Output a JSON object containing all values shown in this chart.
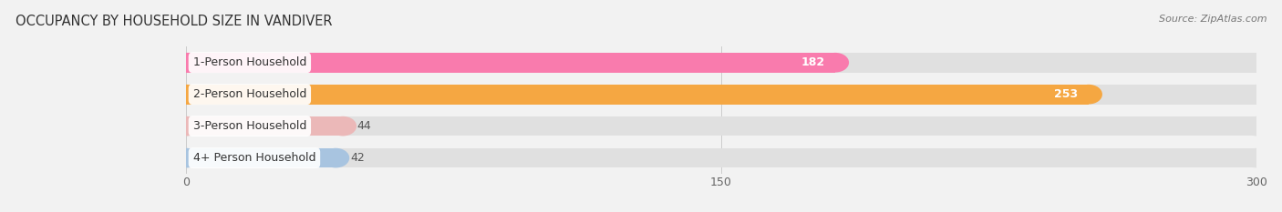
{
  "title": "OCCUPANCY BY HOUSEHOLD SIZE IN VANDIVER",
  "source": "Source: ZipAtlas.com",
  "categories": [
    "1-Person Household",
    "2-Person Household",
    "3-Person Household",
    "4+ Person Household"
  ],
  "values": [
    182,
    253,
    44,
    42
  ],
  "bar_colors": [
    "#f97bad",
    "#f5a742",
    "#ebb8b8",
    "#a8c4e0"
  ],
  "xlim": [
    0,
    300
  ],
  "xticks": [
    0,
    150,
    300
  ],
  "background_color": "#f2f2f2",
  "bar_bg_color": "#e0e0e0",
  "title_fontsize": 10.5,
  "tick_fontsize": 9,
  "bar_label_fontsize": 9,
  "cat_label_fontsize": 9
}
